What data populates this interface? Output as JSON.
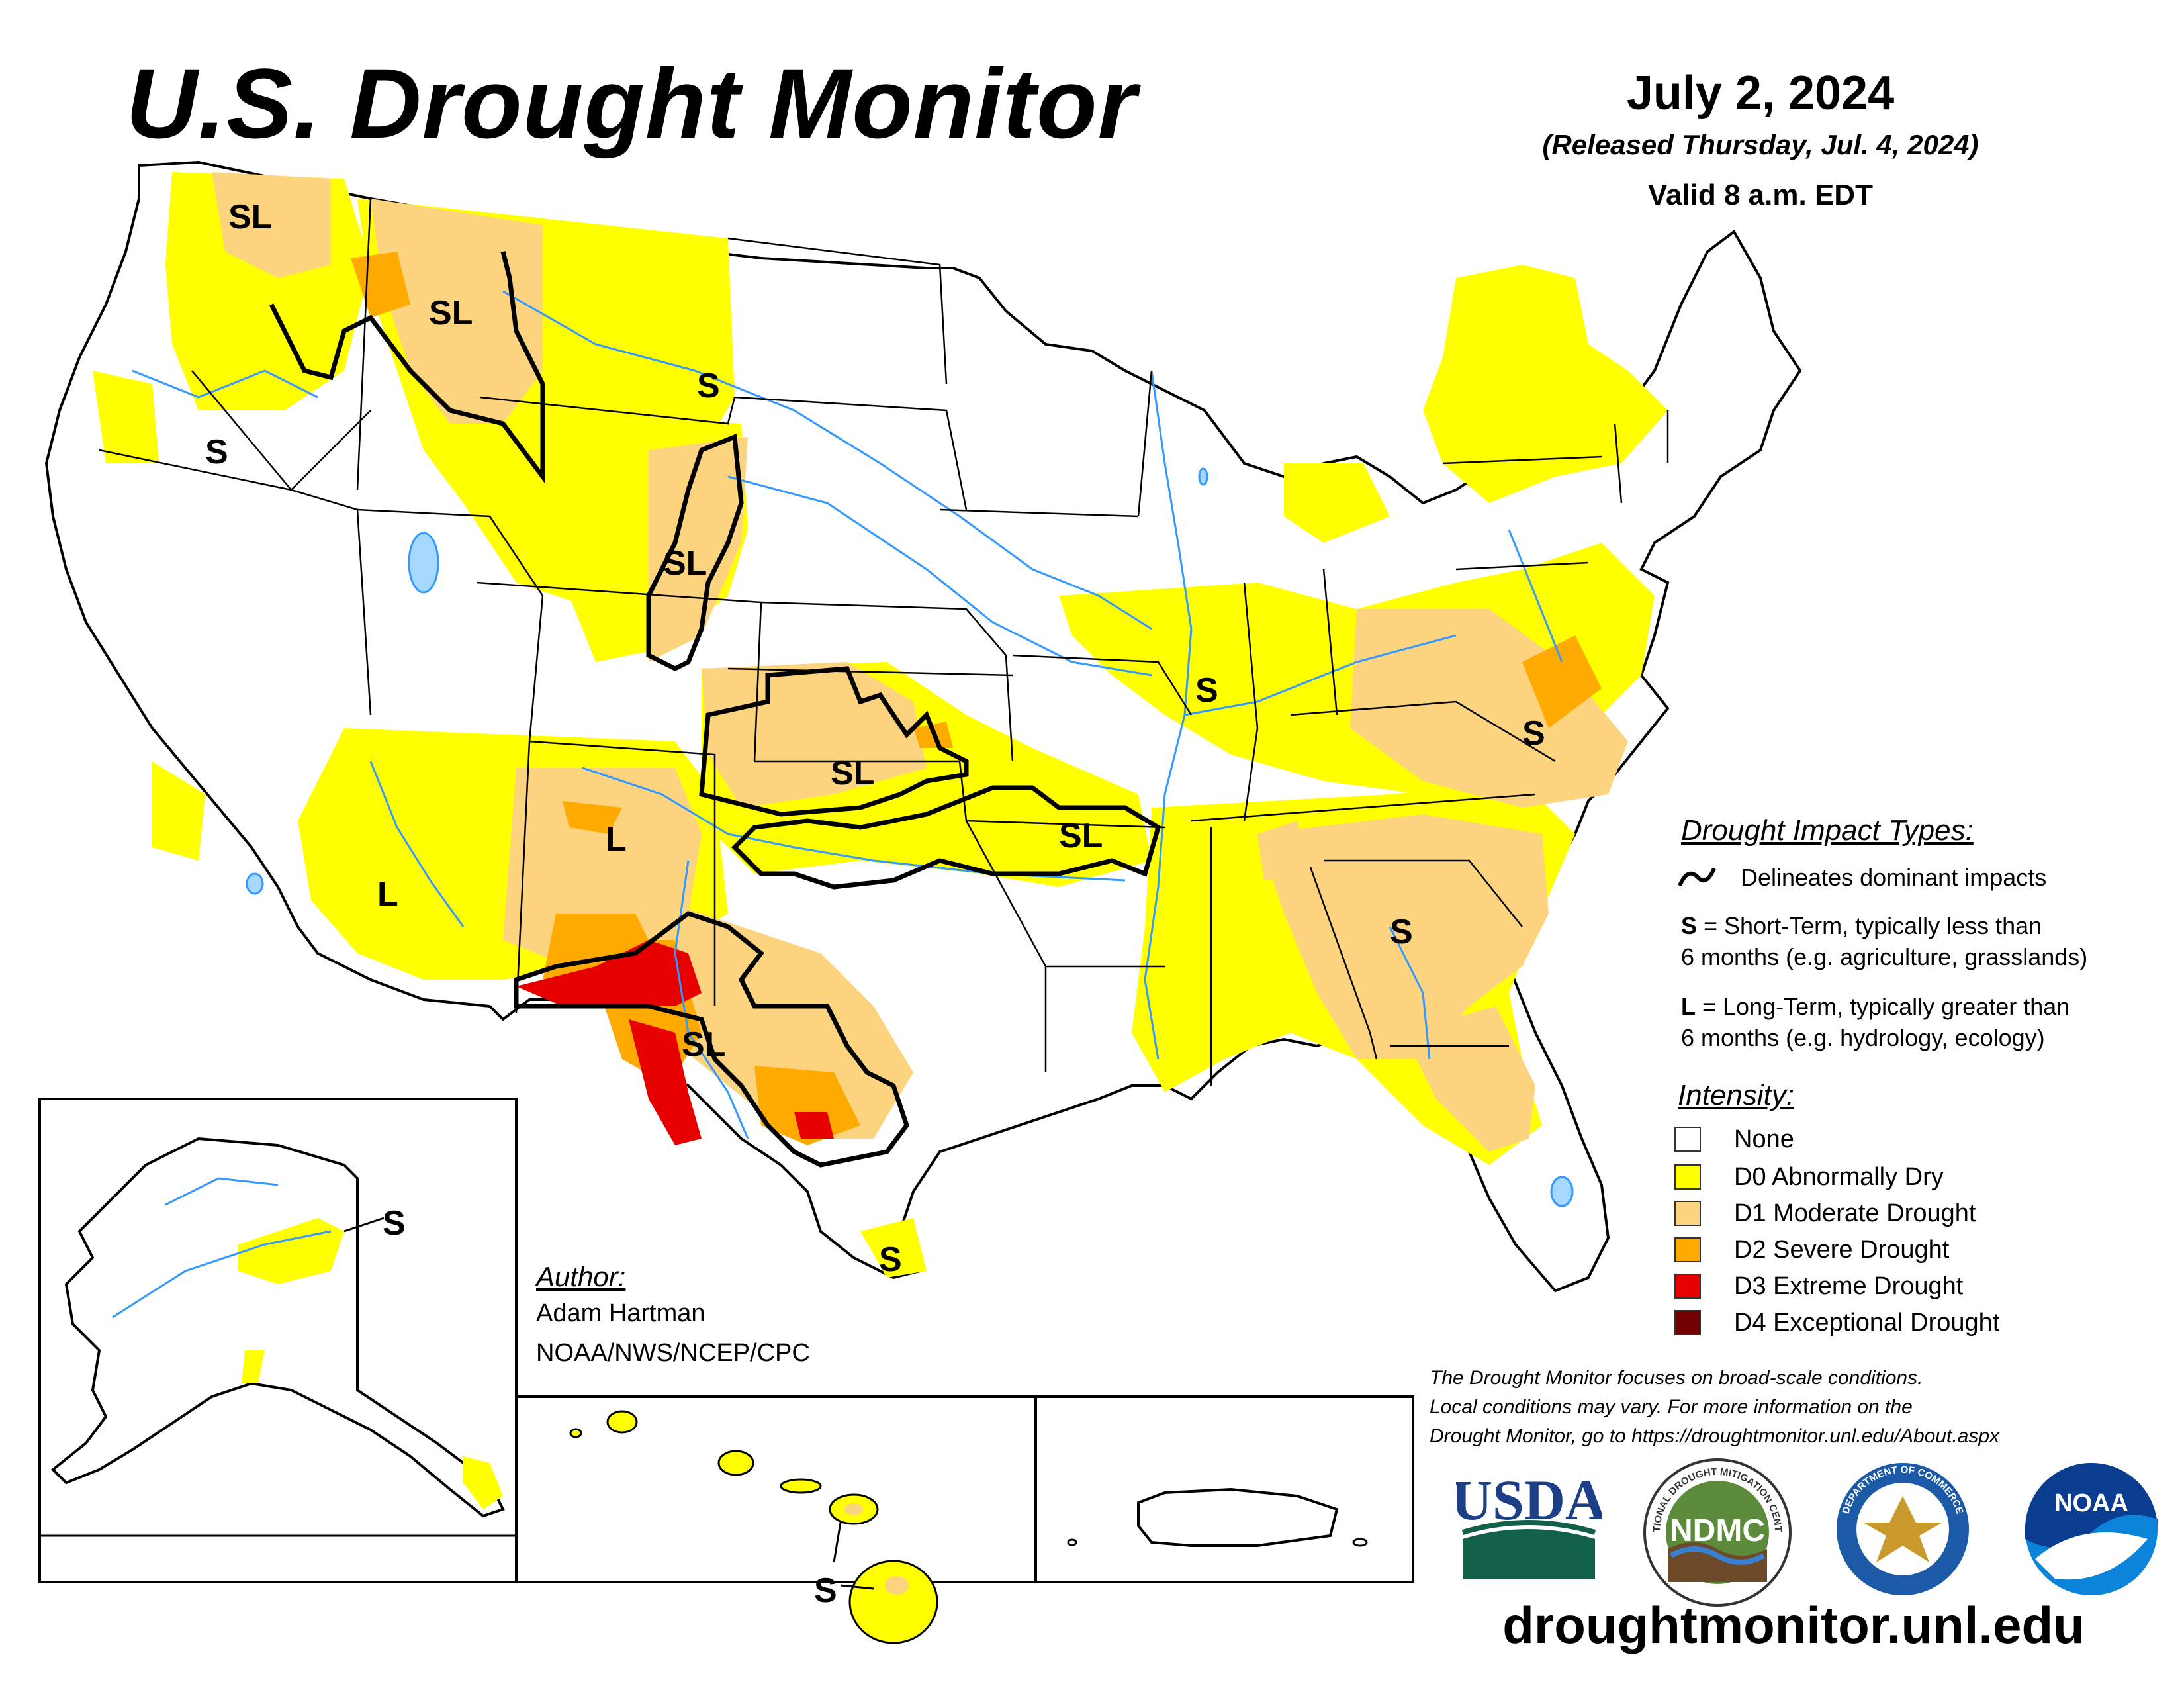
{
  "header": {
    "title": "U.S. Drought Monitor",
    "date": "July 2, 2024",
    "released": "(Released Thursday, Jul. 4, 2024)",
    "valid": "Valid 8 a.m. EDT"
  },
  "impact_legend": {
    "heading": "Drought Impact Types:",
    "line_desc": "Delineates dominant impacts",
    "s_key": "S",
    "s_line1": " = Short-Term, typically less than",
    "s_line2": "6 months (e.g. agriculture, grasslands)",
    "l_key": "L",
    "l_line1": " = Long-Term, typically greater than",
    "l_line2": "6 months (e.g. hydrology, ecology)"
  },
  "intensity_legend": {
    "heading": "Intensity:",
    "items": [
      {
        "label": "None",
        "color": "#ffffff"
      },
      {
        "label": "D0 Abnormally Dry",
        "color": "#ffff00"
      },
      {
        "label": "D1 Moderate Drought",
        "color": "#fcd37f"
      },
      {
        "label": "D2 Severe Drought",
        "color": "#ffaa00"
      },
      {
        "label": "D3 Extreme Drought",
        "color": "#e60000"
      },
      {
        "label": "D4 Exceptional Drought",
        "color": "#730000"
      }
    ]
  },
  "map_labels": {
    "sl_wa": "SL",
    "sl_id": "SL",
    "s_mt": "S",
    "s_or": "S",
    "sl_co": "SL",
    "sl_ks": "SL",
    "sl_mo": "SL",
    "l_nm": "L",
    "l_az": "L",
    "sl_tx": "SL",
    "s_il": "S",
    "s_va": "S",
    "s_ga": "S",
    "s_tx_coast": "S",
    "s_ak": "S",
    "s_hi": "S"
  },
  "author": {
    "heading": "Author:",
    "name": "Adam Hartman",
    "org": "NOAA/NWS/NCEP/CPC"
  },
  "disclaimer": {
    "line1": "The Drought Monitor focuses on broad-scale conditions.",
    "line2": "Local conditions may vary. For more information on the",
    "line3": "Drought Monitor, go to https://droughtmonitor.unl.edu/About.aspx"
  },
  "logos": {
    "usda": "USDA",
    "ndmc": "NDMC",
    "ndmc_ring": "NATIONAL DROUGHT MITIGATION CENTER",
    "commerce_ring": "DEPARTMENT OF COMMERCE",
    "noaa": "NOAA"
  },
  "website": "droughtmonitor.unl.edu",
  "colors": {
    "none": "#ffffff",
    "d0": "#ffff00",
    "d1": "#fcd37f",
    "d2": "#ffaa00",
    "d3": "#e60000",
    "d4": "#730000",
    "water": "#3399ff",
    "lake_fill": "#a6d8ff"
  }
}
